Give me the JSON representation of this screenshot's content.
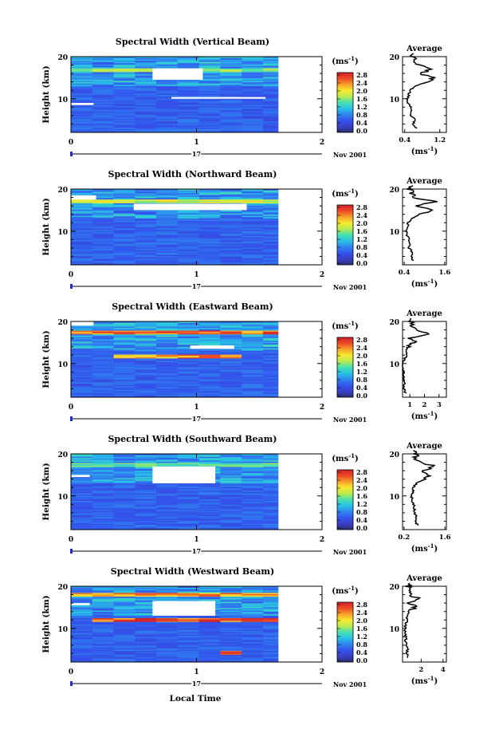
{
  "figure": {
    "bottom_xlabel": "Local Time",
    "date_day": "17",
    "date_month_year": "Nov 2001",
    "colorbar_unit": "(ms",
    "colorbar_unit_exp": "-1",
    "colorbar_ticks": [
      "0.0",
      "0.4",
      "0.8",
      "1.2",
      "1.6",
      "2.0",
      "2.4",
      "2.8"
    ],
    "colorbar_range": [
      0.0,
      2.8
    ],
    "colors": {
      "colorbar_stops": [
        "#2a2f6e",
        "#3a3fc8",
        "#3355ee",
        "#2f86ee",
        "#27c3e6",
        "#46e0b0",
        "#b9ea50",
        "#f5ea30",
        "#f6a22a",
        "#ee4a25",
        "#d2222a"
      ],
      "background": "#2f5fe6",
      "missing": "#ffffff"
    }
  },
  "chart_data": [
    {
      "type": "heatmap",
      "title": "Spectral Width (Vertical Beam)",
      "ylabel": "Height (km)",
      "xlim": [
        0,
        2
      ],
      "ylim": [
        2,
        20
      ],
      "x_ticks": [
        "0",
        "1",
        "2"
      ],
      "y_ticks": [
        "10",
        "20"
      ],
      "data_end_time": 1.65,
      "missing_blocks": [
        [
          0.65,
          1.05,
          14.5,
          17.2
        ],
        [
          0.0,
          0.18,
          8.5,
          9.0
        ],
        [
          0.8,
          1.55,
          10.0,
          10.4
        ]
      ],
      "features": [
        {
          "t0": 0.0,
          "t1": 1.65,
          "h": 16.8,
          "value": 1.6
        }
      ],
      "average": {
        "title": "Average",
        "xlabel": "(ms",
        "xlabel_exp": "-1",
        "xlim": [
          0.35,
          1.35
        ],
        "x_ticks": [
          "0.4",
          "1.2"
        ],
        "x_tick_values": [
          0.4,
          1.2
        ],
        "ylim": [
          2,
          20
        ],
        "height": [
          3,
          4,
          5,
          6,
          7,
          8,
          9,
          10,
          11,
          12,
          13,
          14,
          15,
          16,
          17,
          18,
          19,
          20
        ],
        "value": [
          0.66,
          0.6,
          0.63,
          0.55,
          0.56,
          0.54,
          0.48,
          0.46,
          0.5,
          0.52,
          0.62,
          0.9,
          1.1,
          0.75,
          1.0,
          0.7,
          0.6,
          0.58
        ]
      }
    },
    {
      "type": "heatmap",
      "title": "Spectral Width (Northward Beam)",
      "ylabel": "Height (km)",
      "xlim": [
        0,
        2
      ],
      "ylim": [
        2,
        20
      ],
      "x_ticks": [
        "0",
        "1",
        "2"
      ],
      "y_ticks": [
        "10",
        "20"
      ],
      "data_end_time": 1.65,
      "missing_blocks": [
        [
          0.5,
          1.4,
          15.0,
          16.5
        ],
        [
          0.0,
          0.2,
          17.5,
          18.5
        ]
      ],
      "features": [
        {
          "t0": 0.0,
          "t1": 1.65,
          "h": 17.0,
          "value": 1.8
        }
      ],
      "average": {
        "title": "Average",
        "xlabel": "(ms",
        "xlabel_exp": "-1",
        "xlim": [
          0.35,
          1.65
        ],
        "x_ticks": [
          "0.4",
          "1.6"
        ],
        "x_tick_values": [
          0.4,
          1.6
        ],
        "ylim": [
          2,
          20
        ],
        "height": [
          3,
          4,
          5,
          6,
          7,
          8,
          9,
          10,
          11,
          12,
          13,
          14,
          15,
          16,
          17,
          18,
          19,
          20
        ],
        "value": [
          0.66,
          0.6,
          0.63,
          0.55,
          0.56,
          0.54,
          0.48,
          0.46,
          0.5,
          0.52,
          0.62,
          0.9,
          1.2,
          0.75,
          1.3,
          0.7,
          0.6,
          0.58
        ]
      }
    },
    {
      "type": "heatmap",
      "title": "Spectral Width (Eastward Beam)",
      "ylabel": "Height (km)",
      "xlim": [
        0,
        2
      ],
      "ylim": [
        2,
        20
      ],
      "x_ticks": [
        "0",
        "1",
        "2"
      ],
      "y_ticks": [
        "10",
        "20"
      ],
      "data_end_time": 1.65,
      "missing_blocks": [
        [
          0.0,
          0.18,
          19.0,
          20.0
        ],
        [
          0.95,
          1.3,
          13.5,
          14.3
        ]
      ],
      "features": [
        {
          "t0": 0.0,
          "t1": 1.65,
          "h": 17.2,
          "value": 2.4
        },
        {
          "t0": 0.2,
          "t1": 1.5,
          "h": 11.5,
          "value": 2.2
        }
      ],
      "average": {
        "title": "Average",
        "xlabel": "(ms",
        "xlabel_exp": "-1",
        "xlim": [
          0.5,
          3.5
        ],
        "x_ticks": [
          "1",
          "2",
          "3"
        ],
        "x_tick_values": [
          1,
          2,
          3
        ],
        "ylim": [
          2,
          20
        ],
        "height": [
          3,
          4,
          5,
          6,
          7,
          8,
          9,
          10,
          11,
          12,
          13,
          14,
          15,
          16,
          17,
          18,
          19,
          20
        ],
        "value": [
          0.7,
          0.6,
          0.63,
          0.55,
          0.56,
          0.54,
          0.5,
          0.48,
          0.6,
          0.8,
          0.7,
          0.9,
          1.3,
          1.0,
          2.2,
          1.4,
          1.2,
          1.0
        ]
      }
    },
    {
      "type": "heatmap",
      "title": "Spectral Width (Southward Beam)",
      "ylabel": "Height (km)",
      "xlim": [
        0,
        2
      ],
      "ylim": [
        2,
        20
      ],
      "x_ticks": [
        "0",
        "1",
        "2"
      ],
      "y_ticks": [
        "10",
        "20"
      ],
      "data_end_time": 1.65,
      "missing_blocks": [
        [
          0.65,
          1.15,
          13.0,
          17.0
        ],
        [
          0.0,
          0.15,
          14.5,
          15.0
        ]
      ],
      "features": [
        {
          "t0": 0.0,
          "t1": 1.65,
          "h": 17.4,
          "value": 1.4
        }
      ],
      "average": {
        "title": "Average",
        "xlabel": "(ms",
        "xlabel_exp": "-1",
        "xlim": [
          0.15,
          1.65
        ],
        "x_ticks": [
          "0.2",
          "1.6"
        ],
        "x_tick_values": [
          0.2,
          1.6
        ],
        "ylim": [
          2,
          20
        ],
        "height": [
          3,
          4,
          5,
          6,
          7,
          8,
          9,
          10,
          11,
          12,
          13,
          14,
          15,
          16,
          17,
          18,
          19,
          20
        ],
        "value": [
          0.66,
          0.6,
          0.63,
          0.55,
          0.56,
          0.54,
          0.48,
          0.46,
          0.5,
          0.52,
          0.62,
          0.9,
          1.1,
          0.75,
          1.3,
          0.7,
          0.6,
          0.58
        ]
      }
    },
    {
      "type": "heatmap",
      "title": "Spectral Width (Westward Beam)",
      "ylabel": "Height (km)",
      "xlim": [
        0,
        2
      ],
      "ylim": [
        2,
        20
      ],
      "x_ticks": [
        "0",
        "1",
        "2"
      ],
      "y_ticks": [
        "10",
        "20"
      ],
      "data_end_time": 1.65,
      "missing_blocks": [
        [
          0.65,
          1.15,
          13.0,
          16.5
        ],
        [
          0.0,
          0.15,
          15.5,
          16.0
        ]
      ],
      "features": [
        {
          "t0": 0.0,
          "t1": 1.65,
          "h": 17.8,
          "value": 2.2
        },
        {
          "t0": 0.1,
          "t1": 1.65,
          "h": 12.0,
          "value": 2.5
        },
        {
          "t0": 1.1,
          "t1": 1.4,
          "h": 4.0,
          "value": 2.8
        }
      ],
      "average": {
        "title": "Average",
        "xlabel": "(ms",
        "xlabel_exp": "-1",
        "xlim": [
          0.3,
          4.3
        ],
        "x_ticks": [
          "2",
          "4"
        ],
        "x_tick_values": [
          2,
          4
        ],
        "ylim": [
          2,
          20
        ],
        "height": [
          3,
          4,
          5,
          6,
          7,
          8,
          9,
          10,
          11,
          12,
          13,
          14,
          15,
          16,
          17,
          18,
          19,
          20
        ],
        "value": [
          0.8,
          0.7,
          0.75,
          0.65,
          0.6,
          0.6,
          0.55,
          0.52,
          0.6,
          0.7,
          0.75,
          1.0,
          1.5,
          0.9,
          1.8,
          1.0,
          0.9,
          0.85
        ]
      }
    }
  ]
}
